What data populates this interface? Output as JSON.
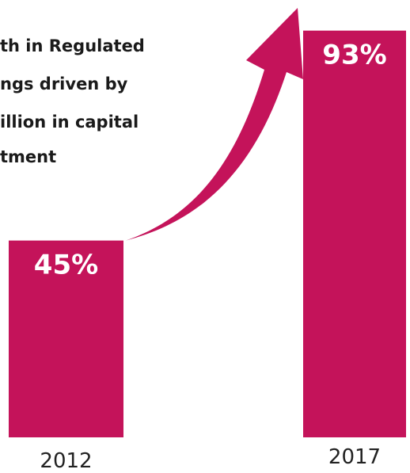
{
  "chart_data": {
    "type": "bar",
    "categories": [
      "2012",
      "2017"
    ],
    "values": [
      45,
      93
    ],
    "value_labels": [
      "45%",
      "93%"
    ],
    "unit": "%",
    "ylim": [
      0,
      100
    ],
    "grid": false,
    "legend": "none",
    "annotation": {
      "lines": [
        "th in Regulated",
        "ngs driven by",
        "illion in capital",
        "tment"
      ]
    },
    "colors": {
      "bar": "#c4135a",
      "arrow": "#c4135a",
      "value_label": "#ffffff",
      "tick_label": "#222222",
      "annotation_text": "#1a1a1a"
    }
  }
}
